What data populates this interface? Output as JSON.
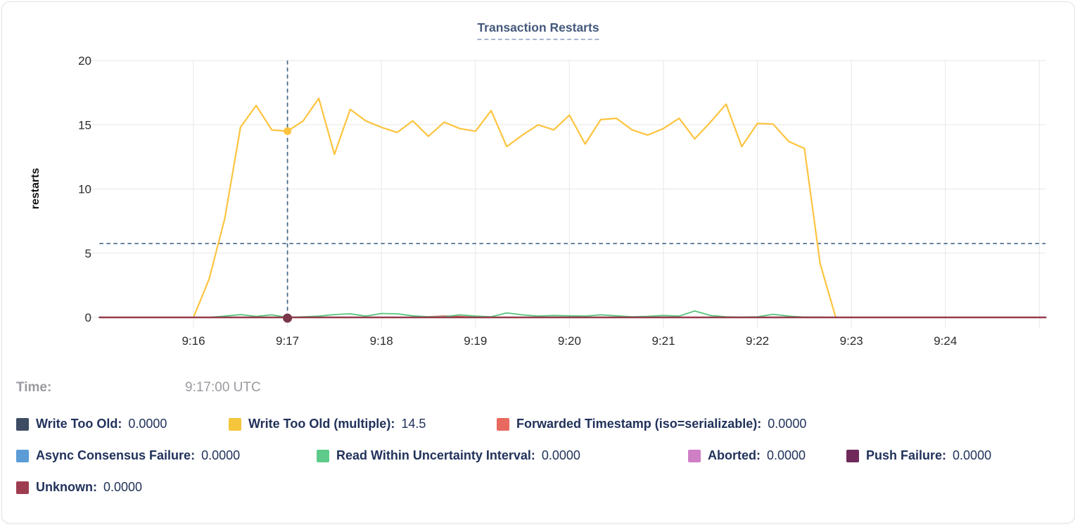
{
  "tooltip": {
    "time_label": "Time:",
    "time_value": "9:17:00 UTC"
  },
  "legend": {
    "items": [
      {
        "label": "Write Too Old:",
        "value": "0.0000",
        "color": "#3d4c63",
        "row": 0,
        "x": 20
      },
      {
        "label": "Write Too Old (multiple):",
        "value": "14.5",
        "color": "#f5c53c",
        "row": 0,
        "x": 322
      },
      {
        "label": "Forwarded Timestamp (iso=serializable):",
        "value": "0.0000",
        "color": "#e8695f",
        "row": 0,
        "x": 703
      },
      {
        "label": "Async Consensus Failure:",
        "value": "0.0000",
        "color": "#5c9cd6",
        "row": 1,
        "x": 20
      },
      {
        "label": "Read Within Uncertainty Interval:",
        "value": "0.0000",
        "color": "#5ecb8b",
        "row": 1,
        "x": 447
      },
      {
        "label": "Aborted:",
        "value": "0.0000",
        "color": "#cf7fc5",
        "row": 1,
        "x": 975
      },
      {
        "label": "Push Failure:",
        "value": "0.0000",
        "color": "#6f2a5b",
        "row": 1,
        "x": 1200
      },
      {
        "label": "Unknown:",
        "value": "0.0000",
        "color": "#9d3c50",
        "row": 2,
        "x": 20
      }
    ]
  },
  "chart_data": {
    "type": "line",
    "title": "Transaction Restarts",
    "xlabel": "",
    "ylabel": "restarts",
    "ylim": [
      0,
      20
    ],
    "grid": true,
    "legend_position": "bottom",
    "x_domain_seconds": [
      0,
      604
    ],
    "x_domain_labels": [
      "9:15:00",
      "9:25:04"
    ],
    "y_ticks": [
      0,
      5,
      10,
      15,
      20
    ],
    "x_ticks": [
      {
        "label": "9:16",
        "sec": 60
      },
      {
        "label": "9:17",
        "sec": 120
      },
      {
        "label": "9:18",
        "sec": 180
      },
      {
        "label": "9:19",
        "sec": 240
      },
      {
        "label": "9:20",
        "sec": 300
      },
      {
        "label": "9:21",
        "sec": 360
      },
      {
        "label": "9:22",
        "sec": 420
      },
      {
        "label": "9:23",
        "sec": 480
      },
      {
        "label": "9:24",
        "sec": 540
      }
    ],
    "x_grid_extra_sec": [
      600
    ],
    "crosshair": {
      "time": "9:17:00 UTC",
      "sec": 120,
      "hline_value": 5.75,
      "point_values": {
        "Write Too Old (multiple)": 14.5,
        "Unknown": 0
      }
    },
    "series": [
      {
        "name": "Write Too Old",
        "color": "#3d4c63",
        "width": 2,
        "constant": 0,
        "from_sec": 0,
        "to_sec": 604
      },
      {
        "name": "Async Consensus Failure",
        "color": "#5c9cd6",
        "width": 2,
        "constant": 0,
        "from_sec": 0,
        "to_sec": 604
      },
      {
        "name": "Aborted",
        "color": "#cf7fc5",
        "width": 2,
        "constant": 0,
        "from_sec": 0,
        "to_sec": 604
      },
      {
        "name": "Push Failure",
        "color": "#6f2a5b",
        "width": 2,
        "constant": 0,
        "from_sec": 0,
        "to_sec": 604
      },
      {
        "name": "Forwarded Timestamp (iso=serializable)",
        "color": "#e05c52",
        "width": 2,
        "points": [
          [
            0,
            0
          ],
          [
            200,
            0
          ],
          [
            210,
            0.05
          ],
          [
            220,
            0.1
          ],
          [
            230,
            0.07
          ],
          [
            240,
            0
          ],
          [
            604,
            0
          ]
        ]
      },
      {
        "name": "Read Within Uncertainty Interval",
        "color": "#57c47c",
        "width": 1.8,
        "start_sec": 70,
        "step_sec": 10,
        "values": [
          0,
          0.1,
          0.22,
          0.08,
          0.2,
          0,
          0.05,
          0.1,
          0.22,
          0.28,
          0.1,
          0.3,
          0.28,
          0.12,
          0.05,
          0.05,
          0.2,
          0.1,
          0.05,
          0.35,
          0.2,
          0.1,
          0.15,
          0.12,
          0.1,
          0.2,
          0.12,
          0.05,
          0.08,
          0.15,
          0.1,
          0.5,
          0.15,
          0.05,
          0.02,
          0.05,
          0.24,
          0.1,
          0.02,
          0.02,
          0
        ]
      },
      {
        "name": "Write Too Old (multiple)",
        "color": "#fdc43f",
        "width": 2.2,
        "start_sec": 60,
        "step_sec": 10,
        "values": [
          0,
          3.0,
          7.7,
          14.8,
          16.5,
          14.6,
          14.5,
          15.3,
          17.05,
          12.7,
          16.2,
          15.3,
          14.8,
          14.4,
          15.3,
          14.1,
          15.2,
          14.7,
          14.5,
          16.1,
          13.3,
          14.2,
          15.0,
          14.6,
          15.75,
          13.5,
          15.4,
          15.5,
          14.6,
          14.2,
          14.7,
          15.5,
          13.9,
          15.2,
          16.6,
          13.3,
          15.1,
          15.05,
          13.7,
          13.15,
          4.2,
          0
        ]
      },
      {
        "name": "Unknown",
        "color": "#963b4d",
        "width": 2.4,
        "constant": 0,
        "from_sec": 0,
        "to_sec": 604
      }
    ]
  }
}
